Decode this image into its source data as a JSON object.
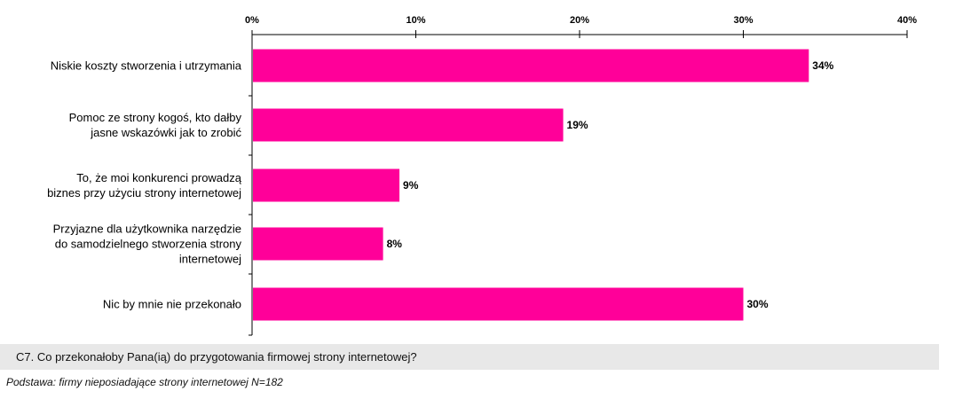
{
  "colors": {
    "bar": "#ff0099",
    "axis": "#000000",
    "question_bg": "#e8e8e8"
  },
  "chart_data": {
    "type": "bar",
    "orientation": "horizontal",
    "title": "",
    "xlabel": "",
    "ylabel": "",
    "xlim": [
      0,
      40
    ],
    "ticks": [
      {
        "value": 0,
        "label": "0%"
      },
      {
        "value": 10,
        "label": "10%"
      },
      {
        "value": 20,
        "label": "20%"
      },
      {
        "value": 30,
        "label": "30%"
      },
      {
        "value": 40,
        "label": "40%"
      }
    ],
    "tick_position": "top",
    "grid": false,
    "legend": "none",
    "categories": [
      {
        "lines": [
          "Niskie koszty stworzenia i utrzymania"
        ]
      },
      {
        "lines": [
          "Pomoc ze strony kogoś, kto dałby",
          "jasne wskazówki jak to zrobić"
        ]
      },
      {
        "lines": [
          "To, że moi konkurenci prowadzą",
          "biznes przy użyciu strony internetowej"
        ]
      },
      {
        "lines": [
          "Przyjazne dla użytkownika narzędzie",
          "do samodzielnego stworzenia strony",
          "internetowej"
        ]
      },
      {
        "lines": [
          "Nic by mnie nie przekonało"
        ]
      }
    ],
    "values": [
      34,
      19,
      9,
      8,
      30
    ],
    "value_labels": [
      "34%",
      "19%",
      "9%",
      "8%",
      "30%"
    ]
  },
  "footer": {
    "question": "C7. Co przekonałoby Pana(ią) do przygotowania firmowej strony internetowej?",
    "base": "Podstawa: firmy nieposiadające strony internetowej N=182"
  }
}
